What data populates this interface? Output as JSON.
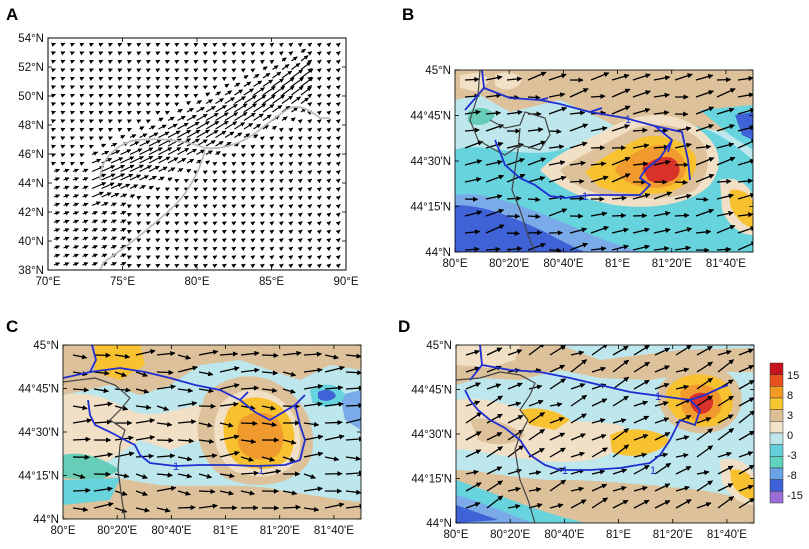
{
  "panels": [
    {
      "label": "A",
      "chart_data": {
        "type": "vector field map",
        "x_ticks": [
          "70°E",
          "75°E",
          "80°E",
          "85°E",
          "90°E"
        ],
        "y_ticks": [
          "38°N",
          "40°N",
          "42°N",
          "44°N",
          "46°N",
          "48°N",
          "50°N",
          "52°N",
          "54°N"
        ],
        "xlim": [
          70,
          90
        ],
        "ylim": [
          38,
          54
        ],
        "overlays": [
          "wind vectors",
          "gray border line"
        ]
      }
    },
    {
      "label": "B",
      "chart_data": {
        "type": "filled contour map with wind vectors",
        "x_ticks": [
          "80°E",
          "80°20'E",
          "80°40'E",
          "81°E",
          "81°20'E",
          "81°40'E"
        ],
        "y_ticks": [
          "44°N",
          "44°15'N",
          "44°30'N",
          "44°45'N",
          "45°N"
        ],
        "xlim": [
          80,
          81.75
        ],
        "ylim": [
          44,
          45
        ],
        "contour_label": "1",
        "anomaly_maximum": {
          "lon": 81.1,
          "lat": 44.46,
          "level": 15
        }
      }
    },
    {
      "label": "C",
      "chart_data": {
        "type": "filled contour map with wind vectors",
        "x_ticks": [
          "80°E",
          "80°20'E",
          "80°40'E",
          "81°E",
          "81°20'E",
          "81°40'E"
        ],
        "y_ticks": [
          "44°N",
          "44°15'N",
          "44°30'N",
          "44°45'N",
          "45°N"
        ],
        "xlim": [
          80,
          81.75
        ],
        "ylim": [
          44,
          45
        ],
        "contour_label": "1",
        "anomaly_maximum": {
          "lon": 81.05,
          "lat": 44.42,
          "level": 8
        }
      }
    },
    {
      "label": "D",
      "chart_data": {
        "type": "filled contour map with wind vectors",
        "x_ticks": [
          "80°E",
          "80°20'E",
          "80°40'E",
          "81°E",
          "81°20'E",
          "81°40'E"
        ],
        "y_ticks": [
          "44°N",
          "44°15'N",
          "44°30'N",
          "44°45'N",
          "45°N"
        ],
        "xlim": [
          80,
          81.75
        ],
        "ylim": [
          44,
          45
        ],
        "contour_label": "1",
        "anomaly_maximum": {
          "lon": 81.4,
          "lat": 44.7,
          "level": 15
        }
      }
    }
  ],
  "colorbar": {
    "levels": [
      "15",
      "8",
      "3",
      "0",
      "-3",
      "-8",
      "-15"
    ],
    "colors": [
      "#c8141e",
      "#e8501e",
      "#f39a23",
      "#f7c733",
      "#dcbf94",
      "#f2e4c8",
      "#bfe6ea",
      "#64cfd9",
      "#5fd3c0",
      "#6aa2e6",
      "#3d5fd8",
      "#9b6fd6"
    ]
  },
  "fill_colors": {
    "deep_red": "#d8322a",
    "orange": "#f19a2e",
    "yellow_orange": "#f7c12f",
    "tan": "#dcc19a",
    "light_beige": "#f1dfc6",
    "light_cyan": "#bde7ec",
    "cyan": "#66d3dd",
    "teal": "#65cdb8",
    "light_blue": "#7aaae8",
    "blue": "#3f62d6"
  },
  "line_colors": {
    "contour": "#1f2fd1",
    "border_A": "#bdbdbd",
    "border_map": "#444444"
  }
}
